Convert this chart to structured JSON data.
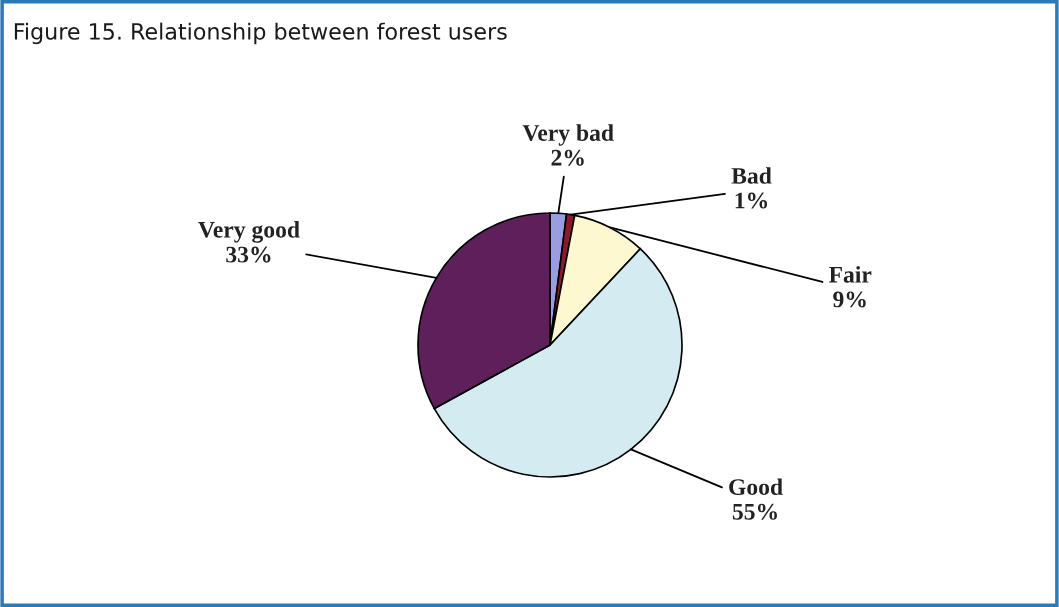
{
  "chart_data": {
    "type": "pie",
    "title": "Figure 15. Relationship between forest users",
    "categories": [
      "Very bad",
      "Bad",
      "Fair",
      "Good",
      "Very good"
    ],
    "values": [
      2,
      1,
      9,
      55,
      33
    ],
    "value_labels": [
      "2%",
      "1%",
      "9%",
      "55%",
      "33%"
    ],
    "colors": [
      "#9a9ee0",
      "#8b1a2a",
      "#fdf8cf",
      "#d4ebf2",
      "#5e1f5b"
    ],
    "legend": false
  }
}
